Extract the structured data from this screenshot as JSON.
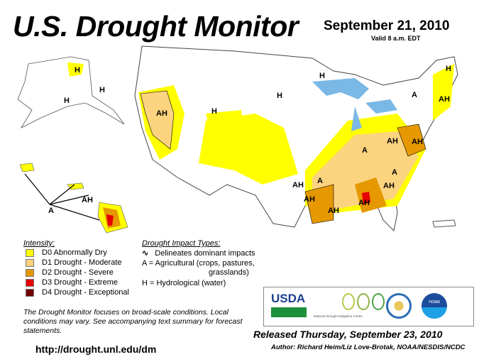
{
  "header": {
    "title": "U.S. Drought Monitor",
    "date": "September 21, 2010",
    "valid": "Valid 8 a.m. EDT"
  },
  "legend": {
    "intensity_title": "Intensity:",
    "items": [
      {
        "label": "D0 Abnormally Dry",
        "color": "#FFFF00"
      },
      {
        "label": "D1 Drought - Moderate",
        "color": "#FCD37F"
      },
      {
        "label": "D2 Drought - Severe",
        "color": "#E69800"
      },
      {
        "label": "D3 Drought - Extreme",
        "color": "#E60000"
      },
      {
        "label": "D4 Drought - Exceptional",
        "color": "#730000"
      }
    ],
    "impact_title": "Drought Impact Types:",
    "impact_line": "Delineates dominant impacts",
    "impact_a": "A = Agricultural (crops, pastures,",
    "impact_a2": "grasslands)",
    "impact_h": "H = Hydrological (water)"
  },
  "map_labels": [
    "H",
    "H",
    "H",
    "AH",
    "H",
    "H",
    "H",
    "H",
    "A",
    "AH",
    "AH",
    "AH",
    "A",
    "AH",
    "AH",
    "A",
    "AH",
    "AH",
    "A",
    "AH",
    "AH",
    "A"
  ],
  "note": "The Drought Monitor focuses on broad-scale conditions. Local conditions may vary. See accompanying text summary for forecast statements.",
  "url": "http://drought.unl.edu/dm",
  "logos": {
    "usda": "USDA",
    "ndmc": "National Drought Mitigation Center",
    "noaa": "noaa"
  },
  "released": "Released Thursday, September 23, 2010",
  "author": "Author: Richard Heim/Liz Love-Brotak, NOAA/NESDIS/NCDC"
}
